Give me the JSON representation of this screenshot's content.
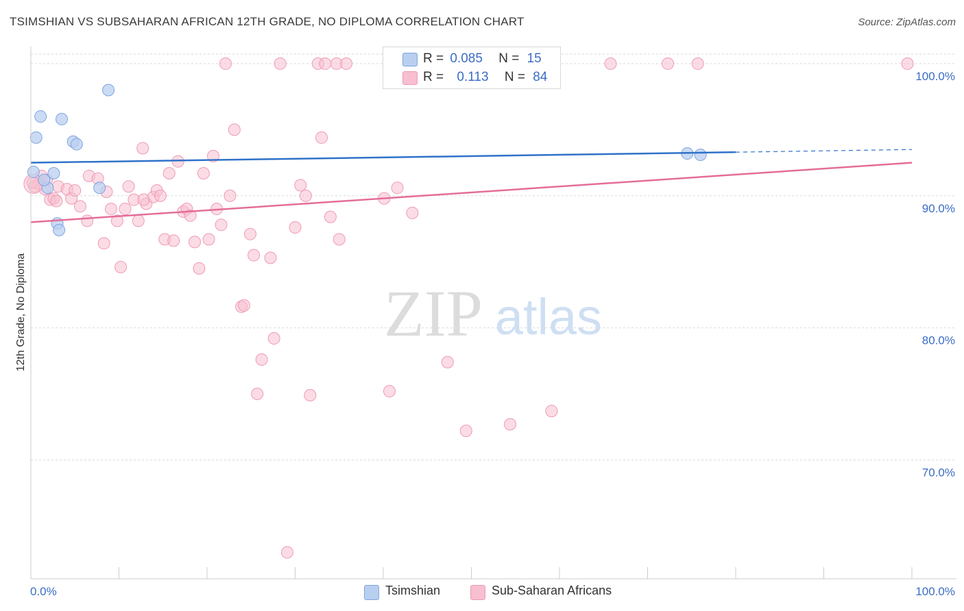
{
  "title": "TSIMSHIAN VS SUBSAHARAN AFRICAN 12TH GRADE, NO DIPLOMA CORRELATION CHART",
  "source": "Source: ZipAtlas.com",
  "watermark": {
    "zip": "ZIP",
    "atlas": "atlas"
  },
  "legend": {
    "rows": [
      {
        "r_label": "R =",
        "r_value": "0.085",
        "n_label": "N =",
        "n_value": "15"
      },
      {
        "r_label": "R =",
        "r_value": "0.113",
        "n_label": "N =",
        "n_value": "84"
      }
    ]
  },
  "bottom_legend": [
    "Tsimshian",
    "Sub-Saharan Africans"
  ],
  "colors": {
    "blue_fill": "#b9cff0",
    "blue_stroke": "#7da4e0",
    "blue_line": "#2f72c9",
    "pink_fill": "#f7bfd0",
    "pink_stroke": "#ee9ab5",
    "pink_line": "#e46d99",
    "tick_text": "#3b6cc4",
    "grid": "#d9d9d9"
  },
  "chart_data": {
    "type": "scatter",
    "title": "TSIMSHIAN VS SUBSAHARAN AFRICAN 12TH GRADE, NO DIPLOMA CORRELATION CHART",
    "xlabel": "",
    "ylabel": "12th Grade, No Diploma",
    "xlim": [
      0,
      100
    ],
    "ylim": [
      61,
      101.5
    ],
    "x_tick_labels": [
      "0.0%",
      "100.0%"
    ],
    "y_ticks": [
      70,
      80,
      90,
      100
    ],
    "y_tick_labels": [
      "70.0%",
      "80.0%",
      "90.0%",
      "100.0%"
    ],
    "grid": true,
    "series": [
      {
        "name": "Tsimshian",
        "color": "#b9cff0",
        "points": [
          [
            0.3,
            91.8
          ],
          [
            1.1,
            96.0
          ],
          [
            0.6,
            94.4
          ],
          [
            3.5,
            95.8
          ],
          [
            8.8,
            98.0
          ],
          [
            4.8,
            94.1
          ],
          [
            5.2,
            93.9
          ],
          [
            2.6,
            91.7
          ],
          [
            1.9,
            90.6
          ],
          [
            7.8,
            90.6
          ],
          [
            3.0,
            87.9
          ],
          [
            3.2,
            87.4
          ],
          [
            1.5,
            91.2
          ],
          [
            74.5,
            93.2
          ],
          [
            76.0,
            93.1
          ]
        ],
        "trend": {
          "x": [
            0,
            80
          ],
          "y": [
            92.5,
            93.3
          ],
          "dashed_to": [
            100,
            93.5
          ]
        }
      },
      {
        "name": "Sub-Saharan Africans",
        "color": "#f7bfd0",
        "points": [
          [
            0.4,
            90.7
          ],
          [
            0.9,
            90.9
          ],
          [
            1.2,
            91.5
          ],
          [
            1.8,
            91.2
          ],
          [
            2.2,
            89.7
          ],
          [
            2.6,
            89.8
          ],
          [
            3.1,
            90.7
          ],
          [
            4.1,
            90.5
          ],
          [
            4.6,
            89.8
          ],
          [
            5.6,
            89.2
          ],
          [
            6.4,
            88.1
          ],
          [
            6.6,
            91.5
          ],
          [
            7.6,
            91.3
          ],
          [
            8.3,
            86.4
          ],
          [
            8.6,
            90.3
          ],
          [
            9.1,
            89.0
          ],
          [
            9.8,
            88.1
          ],
          [
            10.2,
            84.6
          ],
          [
            10.7,
            89.0
          ],
          [
            11.1,
            90.7
          ],
          [
            11.7,
            89.7
          ],
          [
            12.2,
            88.1
          ],
          [
            12.7,
            93.6
          ],
          [
            13.1,
            89.4
          ],
          [
            13.9,
            89.9
          ],
          [
            14.3,
            90.4
          ],
          [
            14.7,
            90.0
          ],
          [
            15.2,
            86.7
          ],
          [
            15.7,
            91.7
          ],
          [
            16.2,
            86.6
          ],
          [
            16.7,
            92.6
          ],
          [
            17.3,
            88.8
          ],
          [
            17.7,
            89.0
          ],
          [
            18.1,
            88.5
          ],
          [
            18.6,
            86.5
          ],
          [
            19.1,
            84.5
          ],
          [
            19.6,
            91.7
          ],
          [
            20.2,
            86.7
          ],
          [
            20.7,
            93.0
          ],
          [
            21.1,
            89.0
          ],
          [
            21.6,
            87.8
          ],
          [
            22.1,
            100.0
          ],
          [
            22.6,
            90.0
          ],
          [
            23.1,
            95.0
          ],
          [
            23.9,
            81.6
          ],
          [
            24.2,
            81.7
          ],
          [
            24.9,
            87.1
          ],
          [
            25.3,
            85.5
          ],
          [
            25.7,
            75.0
          ],
          [
            26.2,
            77.6
          ],
          [
            27.2,
            85.3
          ],
          [
            27.6,
            79.2
          ],
          [
            28.3,
            100.0
          ],
          [
            29.1,
            63.0
          ],
          [
            30.0,
            87.6
          ],
          [
            30.6,
            90.8
          ],
          [
            31.2,
            90.0
          ],
          [
            31.7,
            74.9
          ],
          [
            32.6,
            100.0
          ],
          [
            33.0,
            94.4
          ],
          [
            33.4,
            100.0
          ],
          [
            34.0,
            88.4
          ],
          [
            34.7,
            100.0
          ],
          [
            35.0,
            86.7
          ],
          [
            35.8,
            100.0
          ],
          [
            40.1,
            89.8
          ],
          [
            40.7,
            75.2
          ],
          [
            41.6,
            90.6
          ],
          [
            43.3,
            88.7
          ],
          [
            47.3,
            77.4
          ],
          [
            48.2,
            100.0
          ],
          [
            49.4,
            72.2
          ],
          [
            54.4,
            72.7
          ],
          [
            55.0,
            99.9
          ],
          [
            59.1,
            73.7
          ],
          [
            65.8,
            100.0
          ],
          [
            72.3,
            100.0
          ],
          [
            75.7,
            100.0
          ],
          [
            99.5,
            100.0
          ],
          [
            2.9,
            89.6
          ],
          [
            5.0,
            90.4
          ],
          [
            1.6,
            90.5
          ],
          [
            0.2,
            91.0
          ],
          [
            12.8,
            89.7
          ]
        ],
        "trend": {
          "x": [
            0,
            100
          ],
          "y": [
            88.0,
            92.5
          ]
        }
      }
    ]
  }
}
